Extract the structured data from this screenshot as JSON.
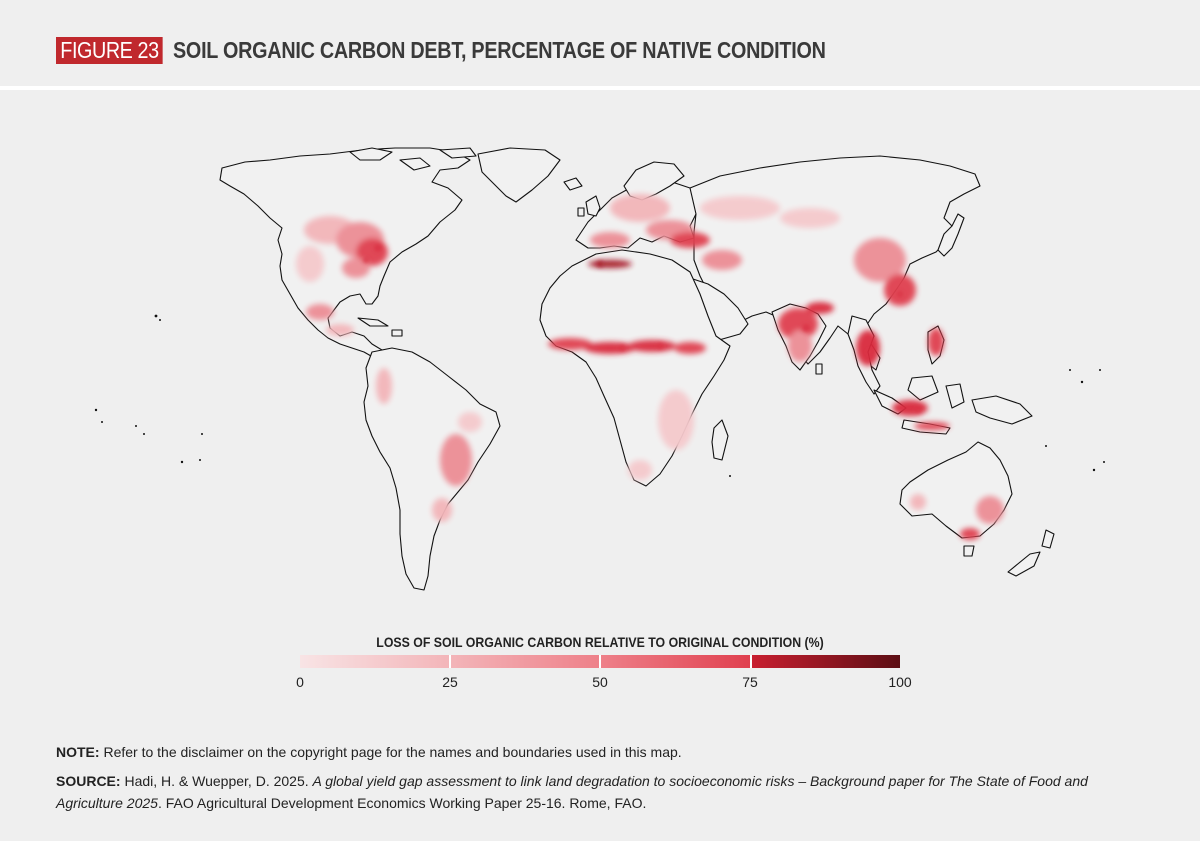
{
  "figure": {
    "tag": "FIGURE 23",
    "title": "SOIL ORGANIC CARBON DEBT, PERCENTAGE OF NATIVE CONDITION"
  },
  "legend": {
    "title": "LOSS OF SOIL ORGANIC CARBON RELATIVE TO ORIGINAL CONDITION (%)",
    "ticks": [
      "0",
      "25",
      "50",
      "75",
      "100"
    ],
    "colors": [
      "#f8e4e5",
      "#f3b5b9",
      "#ee8089",
      "#e0404f",
      "#a11b2a",
      "#5c0e14"
    ],
    "range": [
      0,
      100
    ]
  },
  "footer": {
    "note_label": "NOTE:",
    "note_text": " Refer to the disclaimer on the copyright page for the names and boundaries used in this map.",
    "source_label": "SOURCE:",
    "source_text_1": " Hadi, H. & Wuepper, D. 2025. ",
    "source_italic_1": "A global yield gap assessment to link land degradation to socioeconomic risks – Background paper for The State of Food and Agriculture 2025",
    "source_text_2": ". FAO Agricultural Development Economics Working Paper 25-16. Rome, FAO."
  },
  "map": {
    "land_color": "#f1f1f1",
    "coast_color": "#111111",
    "hotspot_colors": {
      "low": "#f5c9cc",
      "mid": "#ec8d95",
      "high": "#d92b3c",
      "very_high": "#a51423"
    }
  }
}
